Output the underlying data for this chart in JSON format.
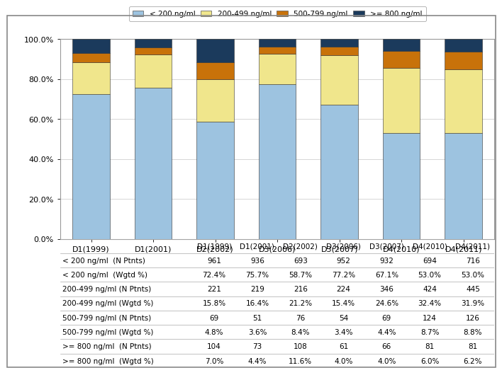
{
  "categories": [
    "D1(1999)",
    "D1(2001)",
    "D2(2002)",
    "D3(2006)",
    "D3(2007)",
    "D4(2010)",
    "D4(2011)"
  ],
  "series": {
    "< 200 ng/ml": [
      72.4,
      75.7,
      58.7,
      77.2,
      67.1,
      53.0,
      53.0
    ],
    "200-499 ng/ml": [
      15.8,
      16.4,
      21.2,
      15.4,
      24.6,
      32.4,
      31.9
    ],
    "500-799 ng/ml": [
      4.8,
      3.6,
      8.4,
      3.4,
      4.4,
      8.7,
      8.8
    ],
    ">= 800 ng/ml": [
      7.0,
      4.4,
      11.6,
      4.0,
      4.0,
      6.0,
      6.2
    ]
  },
  "colors": [
    "#9dc3e0",
    "#f0e68c",
    "#c8720a",
    "#1b3a5c"
  ],
  "legend_labels": [
    "< 200 ng/ml",
    "200-499 ng/ml",
    "500-799 ng/ml",
    ">= 800 ng/ml"
  ],
  "table_rows": [
    {
      "label": "< 200 ng/ml  (N Ptnts)",
      "values": [
        "961",
        "936",
        "693",
        "952",
        "932",
        "694",
        "716"
      ]
    },
    {
      "label": "< 200 ng/ml  (Wgtd %)",
      "values": [
        "72.4%",
        "75.7%",
        "58.7%",
        "77.2%",
        "67.1%",
        "53.0%",
        "53.0%"
      ]
    },
    {
      "label": "200-499 ng/ml (N Ptnts)",
      "values": [
        "221",
        "219",
        "216",
        "224",
        "346",
        "424",
        "445"
      ]
    },
    {
      "label": "200-499 ng/ml (Wgtd %)",
      "values": [
        "15.8%",
        "16.4%",
        "21.2%",
        "15.4%",
        "24.6%",
        "32.4%",
        "31.9%"
      ]
    },
    {
      "label": "500-799 ng/ml (N Ptnts)",
      "values": [
        "69",
        "51",
        "76",
        "54",
        "69",
        "124",
        "126"
      ]
    },
    {
      "label": "500-799 ng/ml (Wgtd %)",
      "values": [
        "4.8%",
        "3.6%",
        "8.4%",
        "3.4%",
        "4.4%",
        "8.7%",
        "8.8%"
      ]
    },
    {
      "label": ">= 800 ng/ml  (N Ptnts)",
      "values": [
        "104",
        "73",
        "108",
        "61",
        "66",
        "81",
        "81"
      ]
    },
    {
      "label": ">= 800 ng/ml  (Wgtd %)",
      "values": [
        "7.0%",
        "4.4%",
        "11.6%",
        "4.0%",
        "4.0%",
        "6.0%",
        "6.2%"
      ]
    }
  ],
  "ylim": [
    0,
    100
  ],
  "yticks": [
    0,
    20,
    40,
    60,
    80,
    100
  ],
  "ytick_labels": [
    "0.0%",
    "20.0%",
    "40.0%",
    "60.0%",
    "80.0%",
    "100.0%"
  ],
  "bar_width": 0.6,
  "background_color": "#ffffff",
  "grid_color": "#d0d0d0",
  "border_color": "#808080",
  "table_header_cats": [
    "D1(1999)",
    "D1(2001)",
    "D2(2002)",
    "D3(2006)",
    "D3(2007)",
    "D4(2010)",
    "D4(2011)"
  ]
}
